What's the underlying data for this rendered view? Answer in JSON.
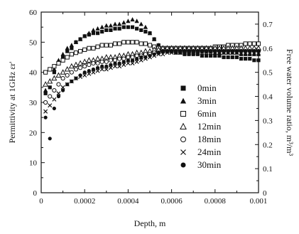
{
  "chart_data": {
    "type": "scatter",
    "title": "",
    "xlabel": "Depth, m",
    "ylabel": "Permittivity at 1GHz εr'",
    "y2label": "Free water volume ratio, m³/m³",
    "xlim": [
      0,
      0.001
    ],
    "ylim": [
      0,
      60
    ],
    "y2lim": [
      0,
      0.75
    ],
    "x_ticks": [
      "0",
      "0.0002",
      "0.0004",
      "0.0006",
      "0.0008",
      "0.001"
    ],
    "y_ticks": [
      "0",
      "10",
      "20",
      "30",
      "40",
      "50",
      "60"
    ],
    "y2_ticks": [
      "0",
      "0.1",
      "0.2",
      "0.3",
      "0.4",
      "0.5",
      "0.6",
      "0.7"
    ],
    "grid": false,
    "legend_position": "bottom-right, inside",
    "series": [
      {
        "name": "0min",
        "marker": "filled-square",
        "x": [
          2e-05,
          4e-05,
          6e-05,
          8e-05,
          0.0001,
          0.00012,
          0.00014,
          0.00016,
          0.00018,
          0.0002,
          0.00022,
          0.00024,
          0.00026,
          0.00028,
          0.0003,
          0.00032,
          0.00034,
          0.00036,
          0.00038,
          0.0004,
          0.00042,
          0.00044,
          0.00046,
          0.00048,
          0.0005,
          0.00052,
          0.00054,
          0.00056,
          0.00058,
          0.0006,
          0.00062,
          0.00064,
          0.00066,
          0.00068,
          0.0007,
          0.00072,
          0.00074,
          0.00076,
          0.00078,
          0.0008,
          0.00082,
          0.00084,
          0.00086,
          0.00088,
          0.0009,
          0.00092,
          0.00094,
          0.00096,
          0.00098,
          0.001
        ],
        "y": [
          33,
          35,
          40,
          43,
          45,
          47,
          48,
          50,
          51,
          52,
          52.5,
          53,
          53,
          53.5,
          54,
          54,
          54.5,
          54.5,
          55,
          55,
          55,
          54.5,
          54,
          53.5,
          53,
          51,
          49,
          47.5,
          47,
          47,
          46.5,
          46.5,
          46,
          46,
          46,
          46,
          45.5,
          45.5,
          45.5,
          45.5,
          45.5,
          45,
          45,
          45,
          45,
          44.5,
          44.5,
          44.5,
          44,
          44
        ]
      },
      {
        "name": "3min",
        "marker": "filled-triangle",
        "x": [
          2e-05,
          4e-05,
          6e-05,
          8e-05,
          0.0001,
          0.00012,
          0.00014,
          0.00016,
          0.00018,
          0.0002,
          0.00022,
          0.00024,
          0.00026,
          0.00028,
          0.0003,
          0.00032,
          0.00034,
          0.00036,
          0.00038,
          0.0004,
          0.00042,
          0.00044,
          0.00046,
          0.00048,
          0.0005,
          0.00052,
          0.00054,
          0.00056,
          0.00058,
          0.0006,
          0.00062,
          0.00064,
          0.00066,
          0.00068,
          0.0007,
          0.00072,
          0.00074,
          0.00076,
          0.00078,
          0.0008,
          0.00082,
          0.00084,
          0.00086,
          0.00088,
          0.0009,
          0.00092,
          0.00094,
          0.00096,
          0.00098,
          0.001
        ],
        "y": [
          34,
          37,
          41,
          44,
          46,
          48,
          49,
          50,
          51,
          52,
          53,
          54,
          54.5,
          55,
          55.5,
          55.5,
          56,
          56,
          56.5,
          57,
          57.5,
          57,
          56,
          55,
          53,
          51,
          49,
          48,
          47,
          47,
          47,
          47,
          47,
          47,
          47,
          47,
          47,
          47,
          47,
          46.5,
          46.5,
          46.5,
          46.5,
          46.5,
          46.5,
          46,
          46,
          46,
          46,
          46
        ]
      },
      {
        "name": "6min",
        "marker": "open-square",
        "x": [
          2e-05,
          4e-05,
          6e-05,
          8e-05,
          0.0001,
          0.00012,
          0.00014,
          0.00016,
          0.00018,
          0.0002,
          0.00022,
          0.00024,
          0.00026,
          0.00028,
          0.0003,
          0.00032,
          0.00034,
          0.00036,
          0.00038,
          0.0004,
          0.00042,
          0.00044,
          0.00046,
          0.00048,
          0.0005,
          0.00052,
          0.00054,
          0.00056,
          0.00058,
          0.0006,
          0.00062,
          0.00064,
          0.00066,
          0.00068,
          0.0007,
          0.00072,
          0.00074,
          0.00076,
          0.00078,
          0.0008,
          0.00082,
          0.00084,
          0.00086,
          0.00088,
          0.0009,
          0.00092,
          0.00094,
          0.00096,
          0.00098,
          0.001
        ],
        "y": [
          40,
          41,
          42,
          43,
          44,
          45,
          46,
          46.5,
          47,
          47.5,
          48,
          48,
          48.5,
          49,
          49,
          49,
          49.5,
          49.5,
          50,
          50,
          50,
          50,
          49.5,
          49.5,
          49,
          48.5,
          48,
          48,
          48,
          48,
          48,
          48,
          48,
          48,
          48,
          48,
          48,
          48,
          48,
          48.5,
          48.5,
          48.5,
          49,
          49,
          49,
          49,
          49.5,
          49.5,
          49.5,
          49.5
        ]
      },
      {
        "name": "12min",
        "marker": "open-triangle",
        "x": [
          2e-05,
          4e-05,
          6e-05,
          8e-05,
          0.0001,
          0.00012,
          0.00014,
          0.00016,
          0.00018,
          0.0002,
          0.00022,
          0.00024,
          0.00026,
          0.00028,
          0.0003,
          0.00032,
          0.00034,
          0.00036,
          0.00038,
          0.0004,
          0.00042,
          0.00044,
          0.00046,
          0.00048,
          0.0005,
          0.00052,
          0.00054,
          0.00056,
          0.00058,
          0.0006,
          0.00062,
          0.00064,
          0.00066,
          0.00068,
          0.0007,
          0.00072,
          0.00074,
          0.00076,
          0.00078,
          0.0008,
          0.00082,
          0.00084,
          0.00086,
          0.00088,
          0.0009,
          0.00092,
          0.00094,
          0.00096,
          0.00098,
          0.001
        ],
        "y": [
          36,
          37,
          38,
          39,
          40,
          41,
          42,
          42.5,
          43,
          43.5,
          44,
          44,
          44.5,
          44.5,
          45,
          45,
          45,
          45.5,
          45.5,
          46,
          46,
          46.5,
          46.5,
          47,
          47,
          47.5,
          47.5,
          48,
          48,
          48,
          48,
          48,
          48,
          48,
          48,
          48,
          48,
          48,
          48,
          48,
          48,
          48,
          48,
          48,
          48,
          48,
          48,
          48,
          48,
          48
        ]
      },
      {
        "name": "18min",
        "marker": "open-circle",
        "x": [
          2e-05,
          4e-05,
          6e-05,
          8e-05,
          0.0001,
          0.00012,
          0.00014,
          0.00016,
          0.00018,
          0.0002,
          0.00022,
          0.00024,
          0.00026,
          0.00028,
          0.0003,
          0.00032,
          0.00034,
          0.00036,
          0.00038,
          0.0004,
          0.00042,
          0.00044,
          0.00046,
          0.00048,
          0.0005,
          0.00052,
          0.00054,
          0.00056,
          0.00058,
          0.0006,
          0.00062,
          0.00064,
          0.00066,
          0.00068,
          0.0007,
          0.00072,
          0.00074,
          0.00076,
          0.00078,
          0.0008,
          0.00082,
          0.00084,
          0.00086,
          0.00088,
          0.0009,
          0.00092,
          0.00094,
          0.00096,
          0.00098,
          0.001
        ],
        "y": [
          30,
          32,
          34,
          36,
          38,
          39,
          40,
          41,
          41.5,
          42,
          42.5,
          43,
          43,
          43.5,
          43.5,
          44,
          44,
          44.5,
          44.5,
          45,
          45,
          45.5,
          45.5,
          46,
          46,
          46.5,
          46.5,
          47,
          47,
          47,
          47,
          47,
          47,
          47,
          47,
          47,
          47,
          47,
          47,
          47,
          47,
          47,
          47,
          47,
          47,
          47,
          47,
          47,
          47,
          47
        ]
      },
      {
        "name": "24min",
        "marker": "cross",
        "x": [
          2e-05,
          4e-05,
          6e-05,
          8e-05,
          0.0001,
          0.00012,
          0.00014,
          0.00016,
          0.00018,
          0.0002,
          0.00022,
          0.00024,
          0.00026,
          0.00028,
          0.0003,
          0.00032,
          0.00034,
          0.00036,
          0.00038,
          0.0004,
          0.00042,
          0.00044,
          0.00046,
          0.00048,
          0.0005,
          0.00052,
          0.00054,
          0.00056,
          0.00058,
          0.0006,
          0.00062,
          0.00064,
          0.00066,
          0.00068,
          0.0007,
          0.00072,
          0.00074,
          0.00076,
          0.00078,
          0.0008,
          0.00082,
          0.00084,
          0.00086,
          0.00088,
          0.0009,
          0.00092,
          0.00094,
          0.00096,
          0.00098,
          0.001
        ],
        "y": [
          27,
          29,
          31,
          33,
          35,
          36,
          37,
          38,
          38.5,
          39,
          39.5,
          40,
          40.5,
          41,
          41,
          41.5,
          42,
          42,
          42.5,
          43,
          43,
          43.5,
          44,
          44.5,
          45,
          45.5,
          46,
          46,
          46.5,
          46.5,
          46.5,
          46.5,
          46.5,
          46.5,
          46.5,
          46.5,
          46.5,
          46.5,
          46.5,
          46.5,
          46.5,
          46.5,
          46.5,
          46.5,
          46.5,
          46.5,
          46.5,
          46.5,
          46.5,
          46.5
        ]
      },
      {
        "name": "30min",
        "marker": "filled-circle",
        "x": [
          2e-05,
          4e-05,
          6e-05,
          8e-05,
          0.0001,
          0.00012,
          0.00014,
          0.00016,
          0.00018,
          0.0002,
          0.00022,
          0.00024,
          0.00026,
          0.00028,
          0.0003,
          0.00032,
          0.00034,
          0.00036,
          0.00038,
          0.0004,
          0.00042,
          0.00044,
          0.00046,
          0.00048,
          0.0005,
          0.00052,
          0.00054,
          0.00056,
          0.00058,
          0.0006,
          0.00062,
          0.00064,
          0.00066,
          0.00068,
          0.0007,
          0.00072,
          0.00074,
          0.00076,
          0.00078,
          0.0008,
          0.00082,
          0.00084,
          0.00086,
          0.00088,
          0.0009,
          0.00092,
          0.00094,
          0.00096,
          0.00098,
          0.001
        ],
        "y": [
          25,
          18,
          28,
          32,
          34,
          36,
          37,
          38,
          39,
          40,
          40.5,
          41,
          41.5,
          42,
          42,
          42.5,
          43,
          43,
          43.5,
          44,
          44,
          44.5,
          45,
          45,
          45.5,
          46,
          46.5,
          47,
          47,
          47,
          47,
          47,
          47,
          47,
          47,
          47,
          47,
          47,
          47,
          47,
          47,
          47,
          47,
          47,
          47,
          47,
          47,
          47,
          47,
          47
        ]
      }
    ]
  }
}
